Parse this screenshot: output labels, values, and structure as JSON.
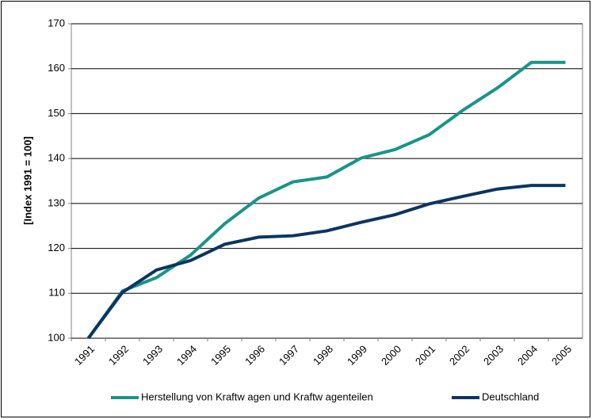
{
  "chart_data": {
    "type": "line",
    "y_label": "[Index 1991 = 100]",
    "categories": [
      "1991",
      "1992",
      "1993",
      "1994",
      "1995",
      "1996",
      "1997",
      "1998",
      "1999",
      "2000",
      "2001",
      "2002",
      "2003",
      "2004",
      "2005"
    ],
    "series": [
      {
        "name": "Herstellung von Kraftw agen und Kraftw agenteilen",
        "color": "#1a9488",
        "values": [
          100,
          110.5,
          113.5,
          118.5,
          125.5,
          131.2,
          134.8,
          135.9,
          140.1,
          142,
          145.3,
          150.8,
          155.7,
          161.4,
          161.4
        ]
      },
      {
        "name": "Deutschland",
        "color": "#0b3560",
        "values": [
          100,
          110.2,
          115.2,
          117.3,
          120.9,
          122.5,
          122.8,
          123.9,
          125.8,
          127.5,
          129.9,
          131.6,
          133.2,
          134,
          134
        ]
      }
    ],
    "ylim": [
      100,
      170
    ],
    "yticks": [
      100,
      110,
      120,
      130,
      140,
      150,
      160,
      170
    ],
    "grid": true,
    "legend": "bottom"
  }
}
